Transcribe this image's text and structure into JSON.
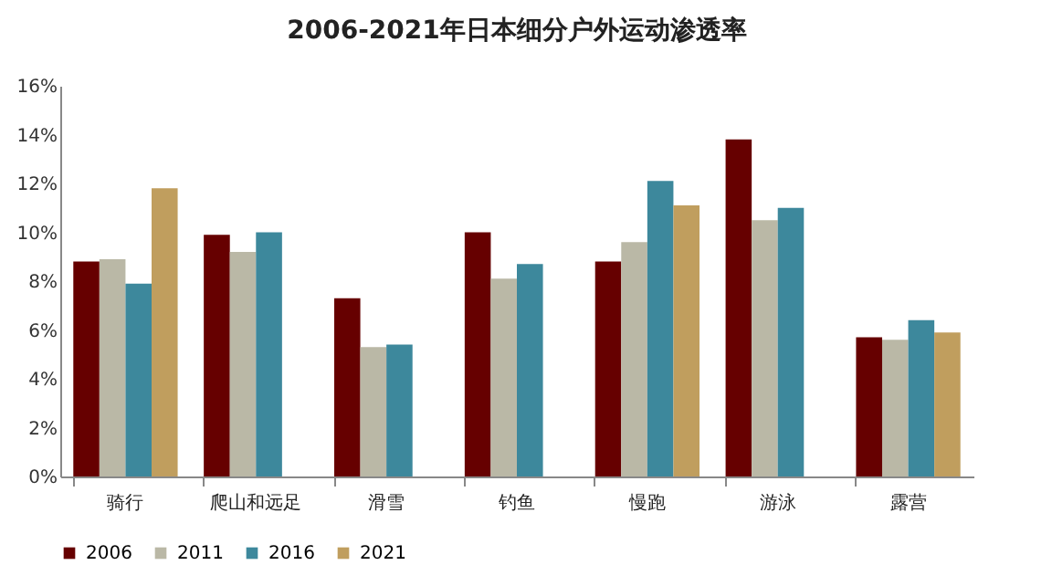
{
  "chart_data": {
    "type": "bar",
    "title": "2006-2021年日本细分户外运动渗透率",
    "categories": [
      "骑行",
      "爬山和远足",
      "滑雪",
      "钓鱼",
      "慢跑",
      "游泳",
      "露营"
    ],
    "series": [
      {
        "name": "2006",
        "color": "#660000",
        "values": [
          8.8,
          9.9,
          7.3,
          10.0,
          8.8,
          13.8,
          5.7
        ]
      },
      {
        "name": "2011",
        "color": "#bab8a6",
        "values": [
          8.9,
          9.2,
          5.3,
          8.1,
          9.6,
          10.5,
          5.6
        ]
      },
      {
        "name": "2016",
        "color": "#3d889c",
        "values": [
          7.9,
          10.0,
          5.4,
          8.7,
          12.1,
          11.0,
          6.4
        ]
      },
      {
        "name": "2021",
        "color": "#c09e5e",
        "values": [
          11.8,
          null,
          null,
          null,
          11.1,
          null,
          5.9
        ]
      }
    ],
    "ylim": [
      0,
      16
    ],
    "yticks": [
      {
        "value": 0,
        "label": "0%"
      },
      {
        "value": 2,
        "label": "2%"
      },
      {
        "value": 4,
        "label": "4%"
      },
      {
        "value": 6,
        "label": "6%"
      },
      {
        "value": 8,
        "label": "8%"
      },
      {
        "value": 10,
        "label": "10%"
      },
      {
        "value": 12,
        "label": "12%"
      },
      {
        "value": 14,
        "label": "14%"
      },
      {
        "value": 16,
        "label": "16%"
      }
    ],
    "grid": false,
    "legend": "bottom"
  }
}
